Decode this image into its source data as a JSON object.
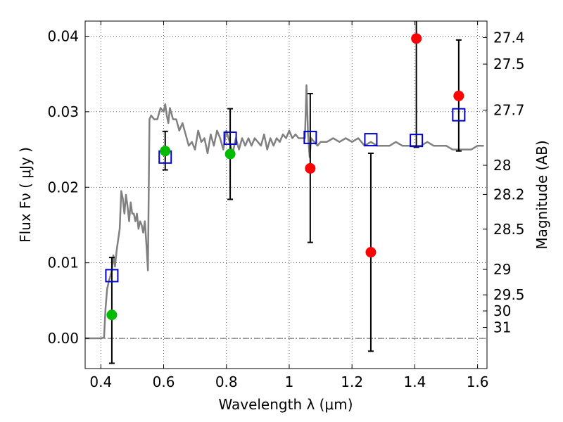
{
  "chart_data": {
    "type": "scatter",
    "xlabel": "Wavelength  λ (μm)",
    "ylabel": "Flux  Fν ( μJy )",
    "ylabel_right": "Magnitude (AB)",
    "xlim": [
      0.35,
      1.63
    ],
    "ylim": [
      -0.004,
      0.042
    ],
    "grid": true,
    "x_ticks": [
      {
        "value": 0.4,
        "label": "0.4"
      },
      {
        "value": 0.6,
        "label": "0.6"
      },
      {
        "value": 0.8,
        "label": "0.8"
      },
      {
        "value": 1.0,
        "label": "1"
      },
      {
        "value": 1.2,
        "label": "1.2"
      },
      {
        "value": 1.4,
        "label": "1.4"
      },
      {
        "value": 1.6,
        "label": "1.6"
      }
    ],
    "y_ticks": [
      {
        "value": 0.0,
        "label": "0.00"
      },
      {
        "value": 0.01,
        "label": "0.01"
      },
      {
        "value": 0.02,
        "label": "0.02"
      },
      {
        "value": 0.03,
        "label": "0.03"
      },
      {
        "value": 0.04,
        "label": "0.04"
      }
    ],
    "mag_ticks": [
      "27.4",
      "27.5",
      "27.7",
      "28",
      "28.2",
      "28.5",
      "29",
      "29.5",
      "30",
      "31"
    ],
    "model_spectrum": {
      "color": "#808080",
      "x": [
        0.35,
        0.4,
        0.41,
        0.415,
        0.42,
        0.425,
        0.43,
        0.435,
        0.44,
        0.445,
        0.45,
        0.455,
        0.46,
        0.465,
        0.47,
        0.475,
        0.48,
        0.485,
        0.49,
        0.495,
        0.5,
        0.505,
        0.51,
        0.515,
        0.52,
        0.525,
        0.53,
        0.535,
        0.54,
        0.545,
        0.55,
        0.555,
        0.56,
        0.57,
        0.58,
        0.59,
        0.6,
        0.605,
        0.61,
        0.615,
        0.62,
        0.63,
        0.64,
        0.65,
        0.66,
        0.67,
        0.68,
        0.69,
        0.7,
        0.71,
        0.72,
        0.73,
        0.74,
        0.75,
        0.76,
        0.77,
        0.78,
        0.79,
        0.8,
        0.81,
        0.82,
        0.83,
        0.84,
        0.85,
        0.86,
        0.87,
        0.88,
        0.89,
        0.9,
        0.91,
        0.92,
        0.93,
        0.94,
        0.95,
        0.96,
        0.97,
        0.98,
        0.99,
        1.0,
        1.01,
        1.02,
        1.03,
        1.04,
        1.05,
        1.055,
        1.06,
        1.065,
        1.07,
        1.08,
        1.09,
        1.1,
        1.12,
        1.14,
        1.16,
        1.18,
        1.2,
        1.22,
        1.24,
        1.26,
        1.28,
        1.3,
        1.32,
        1.34,
        1.36,
        1.38,
        1.4,
        1.42,
        1.44,
        1.46,
        1.48,
        1.5,
        1.52,
        1.54,
        1.56,
        1.58,
        1.6,
        1.62
      ],
      "y": [
        0.0,
        0.0,
        0.0001,
        0.004,
        0.0065,
        0.0075,
        0.0082,
        0.009,
        0.011,
        0.0095,
        0.0115,
        0.013,
        0.0145,
        0.0195,
        0.0185,
        0.0165,
        0.019,
        0.0175,
        0.0155,
        0.018,
        0.0165,
        0.0165,
        0.0155,
        0.0165,
        0.0145,
        0.0155,
        0.015,
        0.014,
        0.0155,
        0.0125,
        0.009,
        0.029,
        0.0295,
        0.029,
        0.029,
        0.0305,
        0.03,
        0.031,
        0.0295,
        0.0285,
        0.0305,
        0.029,
        0.029,
        0.0275,
        0.0285,
        0.027,
        0.0255,
        0.026,
        0.025,
        0.0275,
        0.026,
        0.0265,
        0.0245,
        0.027,
        0.0255,
        0.0275,
        0.0265,
        0.025,
        0.0275,
        0.026,
        0.0245,
        0.0265,
        0.025,
        0.0265,
        0.0255,
        0.0265,
        0.0255,
        0.0265,
        0.026,
        0.0255,
        0.027,
        0.025,
        0.0265,
        0.0255,
        0.0265,
        0.026,
        0.027,
        0.0265,
        0.0275,
        0.0265,
        0.027,
        0.0265,
        0.0265,
        0.0265,
        0.0335,
        0.027,
        0.024,
        0.0265,
        0.026,
        0.0255,
        0.026,
        0.026,
        0.0265,
        0.026,
        0.0265,
        0.026,
        0.0265,
        0.0255,
        0.026,
        0.0255,
        0.0255,
        0.0255,
        0.026,
        0.0255,
        0.0255,
        0.0255,
        0.0255,
        0.026,
        0.0255,
        0.0255,
        0.0255,
        0.025,
        0.025,
        0.025,
        0.025,
        0.0255,
        0.0255
      ]
    },
    "model_photometry": {
      "color": "#0000cc",
      "x": [
        0.435,
        0.605,
        0.812,
        1.067,
        1.26,
        1.405,
        1.54
      ],
      "y": [
        0.0083,
        0.024,
        0.0265,
        0.0266,
        0.0263,
        0.0262,
        0.0296
      ]
    },
    "observed": [
      {
        "x": 0.435,
        "y": 0.0031,
        "err_lo": -0.0033,
        "err_hi": 0.0107,
        "color": "#00bb00"
      },
      {
        "x": 0.605,
        "y": 0.0248,
        "err_lo": 0.0223,
        "err_hi": 0.0274,
        "color": "#00bb00"
      },
      {
        "x": 0.812,
        "y": 0.0244,
        "err_lo": 0.0184,
        "err_hi": 0.0304,
        "color": "#00bb00"
      },
      {
        "x": 1.067,
        "y": 0.0225,
        "err_lo": 0.0127,
        "err_hi": 0.0324,
        "color": "#ff0000"
      },
      {
        "x": 1.26,
        "y": 0.0114,
        "err_lo": -0.0017,
        "err_hi": 0.0245,
        "color": "#ff0000"
      },
      {
        "x": 1.405,
        "y": 0.0397,
        "err_lo": 0.0253,
        "err_hi": 0.042,
        "color": "#ff0000"
      },
      {
        "x": 1.54,
        "y": 0.0321,
        "err_lo": 0.0248,
        "err_hi": 0.0395,
        "color": "#ff0000"
      }
    ]
  }
}
